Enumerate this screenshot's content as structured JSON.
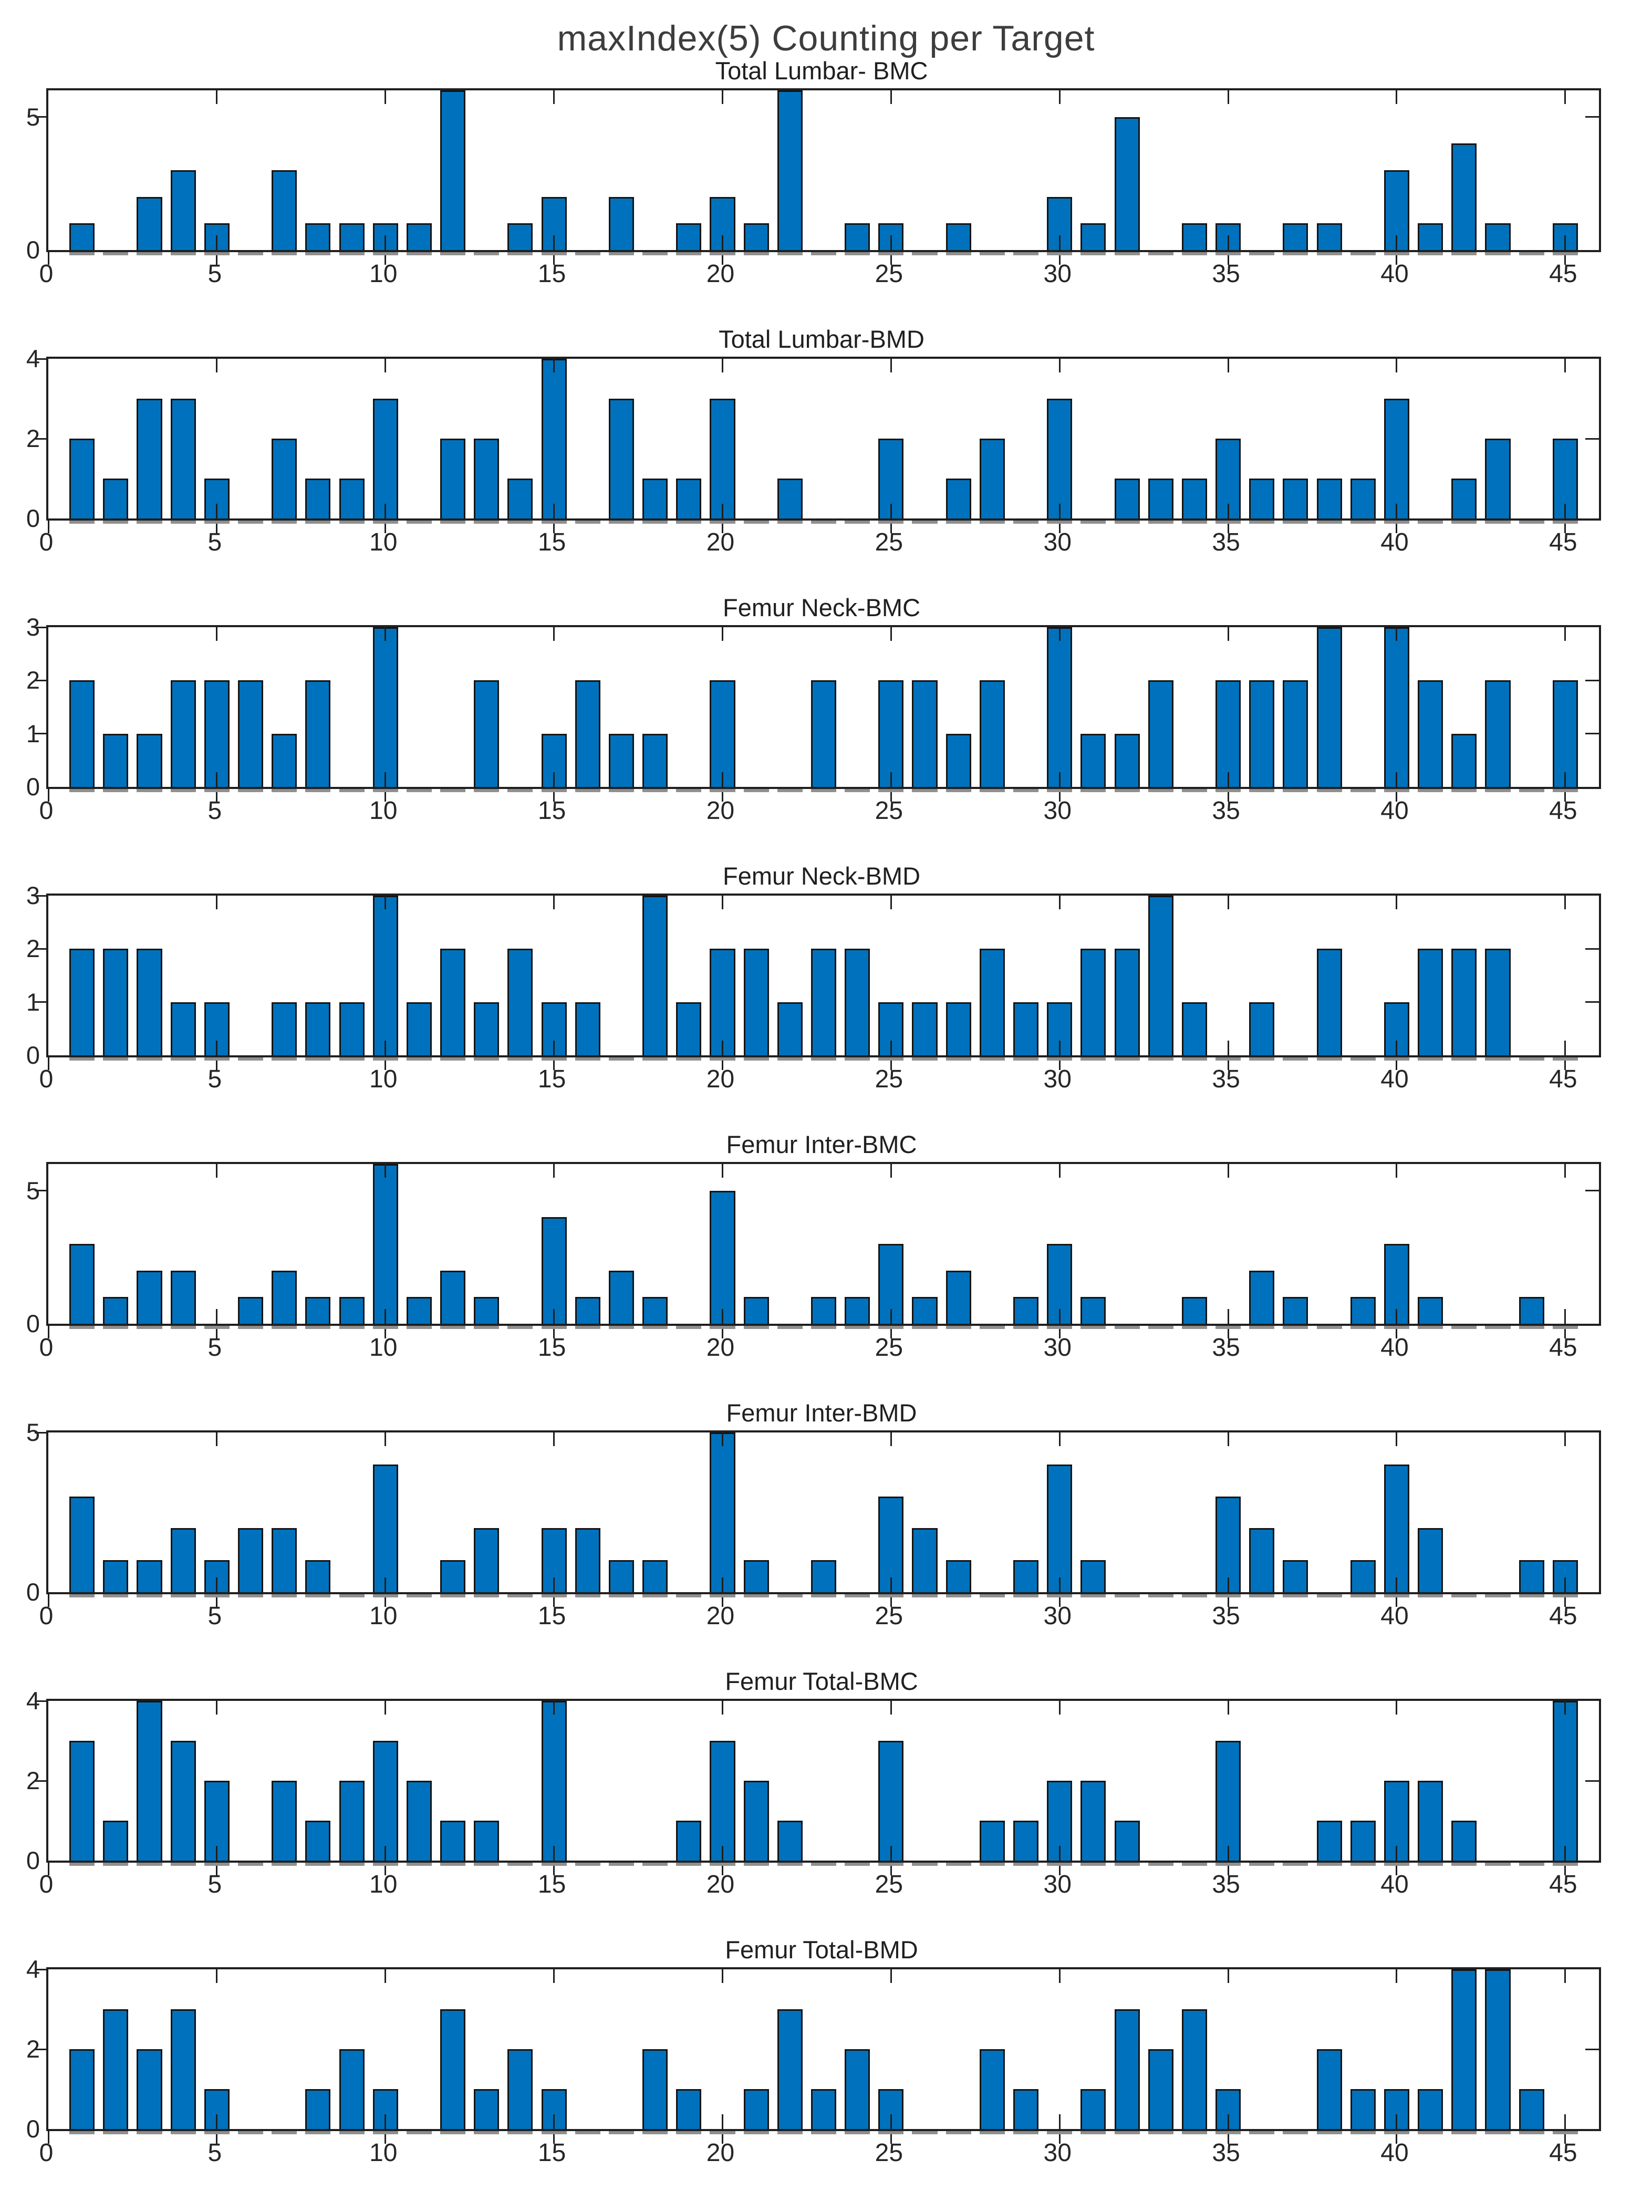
{
  "title": "maxIndex(5) Counting per Target",
  "colors": {
    "bar_fill": "#0072BD",
    "bar_edge": "#141414",
    "axis": "#1f1f1f",
    "tick_label": "#262626",
    "zero_dash": "#8f8f8f",
    "background": "#ffffff"
  },
  "layout": {
    "grid": "off",
    "legend": "none",
    "xlim": [
      0,
      46
    ],
    "x_start": 1,
    "x_count": 45,
    "bar_width_units": 0.75
  },
  "x_ticks": [
    0,
    5,
    10,
    15,
    20,
    25,
    30,
    35,
    40,
    45
  ],
  "chart_data": [
    {
      "type": "bar",
      "title": "Total Lumbar- BMC",
      "xlabel": "",
      "ylabel": "",
      "ylim": [
        0,
        6
      ],
      "yticks": [
        0,
        5
      ],
      "x": [
        1,
        2,
        3,
        4,
        5,
        6,
        7,
        8,
        9,
        10,
        11,
        12,
        13,
        14,
        15,
        16,
        17,
        18,
        19,
        20,
        21,
        22,
        23,
        24,
        25,
        26,
        27,
        28,
        29,
        30,
        31,
        32,
        33,
        34,
        35,
        36,
        37,
        38,
        39,
        40,
        41,
        42,
        43,
        44,
        45
      ],
      "values": [
        1,
        0,
        2,
        3,
        1,
        0,
        3,
        1,
        1,
        1,
        1,
        6,
        0,
        1,
        2,
        0,
        2,
        0,
        1,
        2,
        1,
        6,
        0,
        1,
        1,
        0,
        1,
        0,
        0,
        2,
        1,
        5,
        0,
        1,
        1,
        0,
        1,
        1,
        0,
        3,
        1,
        4,
        1,
        0,
        1
      ]
    },
    {
      "type": "bar",
      "title": "Total Lumbar-BMD",
      "xlabel": "",
      "ylabel": "",
      "ylim": [
        0,
        4
      ],
      "yticks": [
        0,
        2,
        4
      ],
      "x": [
        1,
        2,
        3,
        4,
        5,
        6,
        7,
        8,
        9,
        10,
        11,
        12,
        13,
        14,
        15,
        16,
        17,
        18,
        19,
        20,
        21,
        22,
        23,
        24,
        25,
        26,
        27,
        28,
        29,
        30,
        31,
        32,
        33,
        34,
        35,
        36,
        37,
        38,
        39,
        40,
        41,
        42,
        43,
        44,
        45
      ],
      "values": [
        2,
        1,
        3,
        3,
        1,
        0,
        2,
        1,
        1,
        3,
        0,
        2,
        2,
        1,
        4,
        0,
        3,
        1,
        1,
        3,
        0,
        1,
        0,
        0,
        2,
        0,
        1,
        2,
        0,
        3,
        0,
        1,
        1,
        1,
        2,
        1,
        1,
        1,
        1,
        3,
        0,
        1,
        2,
        0,
        2
      ]
    },
    {
      "type": "bar",
      "title": "Femur Neck-BMC",
      "xlabel": "",
      "ylabel": "",
      "ylim": [
        0,
        3
      ],
      "yticks": [
        0,
        1,
        2,
        3
      ],
      "x": [
        1,
        2,
        3,
        4,
        5,
        6,
        7,
        8,
        9,
        10,
        11,
        12,
        13,
        14,
        15,
        16,
        17,
        18,
        19,
        20,
        21,
        22,
        23,
        24,
        25,
        26,
        27,
        28,
        29,
        30,
        31,
        32,
        33,
        34,
        35,
        36,
        37,
        38,
        39,
        40,
        41,
        42,
        43,
        44,
        45
      ],
      "values": [
        2,
        1,
        1,
        2,
        2,
        2,
        1,
        2,
        0,
        3,
        0,
        0,
        2,
        0,
        1,
        2,
        1,
        1,
        0,
        2,
        0,
        0,
        2,
        0,
        2,
        2,
        1,
        2,
        0,
        3,
        1,
        1,
        2,
        0,
        2,
        2,
        2,
        3,
        0,
        3,
        2,
        1,
        2,
        0,
        2
      ]
    },
    {
      "type": "bar",
      "title": "Femur Neck-BMD",
      "xlabel": "",
      "ylabel": "",
      "ylim": [
        0,
        3
      ],
      "yticks": [
        0,
        1,
        2,
        3
      ],
      "x": [
        1,
        2,
        3,
        4,
        5,
        6,
        7,
        8,
        9,
        10,
        11,
        12,
        13,
        14,
        15,
        16,
        17,
        18,
        19,
        20,
        21,
        22,
        23,
        24,
        25,
        26,
        27,
        28,
        29,
        30,
        31,
        32,
        33,
        34,
        35,
        36,
        37,
        38,
        39,
        40,
        41,
        42,
        43,
        44,
        45
      ],
      "values": [
        2,
        2,
        2,
        1,
        1,
        0,
        1,
        1,
        1,
        3,
        1,
        2,
        1,
        2,
        1,
        1,
        0,
        3,
        1,
        2,
        2,
        1,
        2,
        2,
        1,
        1,
        1,
        2,
        1,
        1,
        2,
        2,
        3,
        1,
        0,
        1,
        0,
        2,
        0,
        1,
        2,
        2,
        2,
        0,
        0
      ]
    },
    {
      "type": "bar",
      "title": "Femur Inter-BMC",
      "xlabel": "",
      "ylabel": "",
      "ylim": [
        0,
        6
      ],
      "yticks": [
        0,
        5
      ],
      "x": [
        1,
        2,
        3,
        4,
        5,
        6,
        7,
        8,
        9,
        10,
        11,
        12,
        13,
        14,
        15,
        16,
        17,
        18,
        19,
        20,
        21,
        22,
        23,
        24,
        25,
        26,
        27,
        28,
        29,
        30,
        31,
        32,
        33,
        34,
        35,
        36,
        37,
        38,
        39,
        40,
        41,
        42,
        43,
        44,
        45
      ],
      "values": [
        3,
        1,
        2,
        2,
        0,
        1,
        2,
        1,
        1,
        6,
        1,
        2,
        1,
        0,
        4,
        1,
        2,
        1,
        0,
        5,
        1,
        0,
        1,
        1,
        3,
        1,
        2,
        0,
        1,
        3,
        1,
        0,
        0,
        1,
        0,
        2,
        1,
        0,
        1,
        3,
        1,
        0,
        0,
        1,
        0
      ]
    },
    {
      "type": "bar",
      "title": "Femur Inter-BMD",
      "xlabel": "",
      "ylabel": "",
      "ylim": [
        0,
        5
      ],
      "yticks": [
        0,
        5
      ],
      "x": [
        1,
        2,
        3,
        4,
        5,
        6,
        7,
        8,
        9,
        10,
        11,
        12,
        13,
        14,
        15,
        16,
        17,
        18,
        19,
        20,
        21,
        22,
        23,
        24,
        25,
        26,
        27,
        28,
        29,
        30,
        31,
        32,
        33,
        34,
        35,
        36,
        37,
        38,
        39,
        40,
        41,
        42,
        43,
        44,
        45
      ],
      "values": [
        3,
        1,
        1,
        2,
        1,
        2,
        2,
        1,
        0,
        4,
        0,
        1,
        2,
        0,
        2,
        2,
        1,
        1,
        0,
        5,
        1,
        0,
        1,
        0,
        3,
        2,
        1,
        0,
        1,
        4,
        1,
        0,
        0,
        0,
        3,
        2,
        1,
        0,
        1,
        4,
        2,
        0,
        0,
        1,
        1
      ]
    },
    {
      "type": "bar",
      "title": "Femur Total-BMC",
      "xlabel": "",
      "ylabel": "",
      "ylim": [
        0,
        4
      ],
      "yticks": [
        0,
        2,
        4
      ],
      "x": [
        1,
        2,
        3,
        4,
        5,
        6,
        7,
        8,
        9,
        10,
        11,
        12,
        13,
        14,
        15,
        16,
        17,
        18,
        19,
        20,
        21,
        22,
        23,
        24,
        25,
        26,
        27,
        28,
        29,
        30,
        31,
        32,
        33,
        34,
        35,
        36,
        37,
        38,
        39,
        40,
        41,
        42,
        43,
        44,
        45
      ],
      "values": [
        3,
        1,
        4,
        3,
        2,
        0,
        2,
        1,
        2,
        3,
        2,
        1,
        1,
        0,
        4,
        0,
        0,
        0,
        1,
        3,
        2,
        1,
        0,
        0,
        3,
        0,
        0,
        1,
        1,
        2,
        2,
        1,
        0,
        0,
        3,
        0,
        0,
        1,
        1,
        2,
        2,
        1,
        0,
        0,
        4
      ]
    },
    {
      "type": "bar",
      "title": "Femur Total-BMD",
      "xlabel": "",
      "ylabel": "",
      "ylim": [
        0,
        4
      ],
      "yticks": [
        0,
        2,
        4
      ],
      "x": [
        1,
        2,
        3,
        4,
        5,
        6,
        7,
        8,
        9,
        10,
        11,
        12,
        13,
        14,
        15,
        16,
        17,
        18,
        19,
        20,
        21,
        22,
        23,
        24,
        25,
        26,
        27,
        28,
        29,
        30,
        31,
        32,
        33,
        34,
        35,
        36,
        37,
        38,
        39,
        40,
        41,
        42,
        43,
        44,
        45
      ],
      "values": [
        2,
        3,
        2,
        3,
        1,
        0,
        0,
        1,
        2,
        1,
        0,
        3,
        1,
        2,
        1,
        0,
        0,
        2,
        1,
        0,
        1,
        3,
        1,
        2,
        1,
        0,
        0,
        2,
        1,
        0,
        1,
        3,
        2,
        3,
        1,
        0,
        0,
        2,
        1,
        1,
        1,
        4,
        4,
        1,
        0
      ]
    }
  ]
}
